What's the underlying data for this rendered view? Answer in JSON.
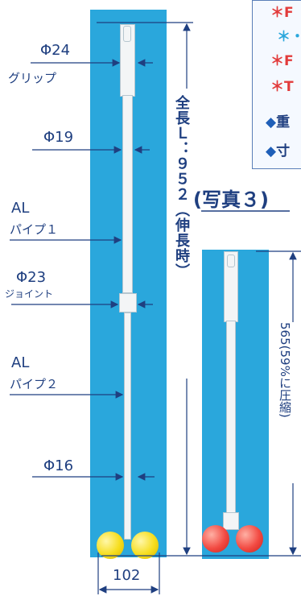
{
  "labels": {
    "phi24": "Φ24",
    "grip": "グリップ",
    "phi19": "Φ19",
    "al1": "AL",
    "pipe1": "パイプ１",
    "phi23": "Φ23",
    "joint": "ジョイント",
    "al2": "AL",
    "pipe2": "パイプ２",
    "phi16": "Φ16",
    "width": "102",
    "total_length": "全長Ｌ：９５２（伸長時）",
    "photo_caption": "(写真３)",
    "compressed": "565(59%に圧縮)"
  },
  "notes": [
    {
      "marker": "＊",
      "text": "F",
      "color": "#e23b3b"
    },
    {
      "marker": "＊",
      "text": "・",
      "color": "#2aa7dc"
    },
    {
      "marker": "＊",
      "text": "F",
      "color": "#e23b3b"
    },
    {
      "marker": "＊",
      "text": "T",
      "color": "#e23b3b"
    },
    {
      "marker": "◆",
      "text": "重",
      "color": "#1f3f80"
    },
    {
      "marker": "◆",
      "text": "寸",
      "color": "#1f3f80"
    }
  ],
  "colors": {
    "panel": "#2aa7dc",
    "text": "#1f3f80",
    "ball_left": "#f6dd1c",
    "ball_right": "#f24a42"
  }
}
